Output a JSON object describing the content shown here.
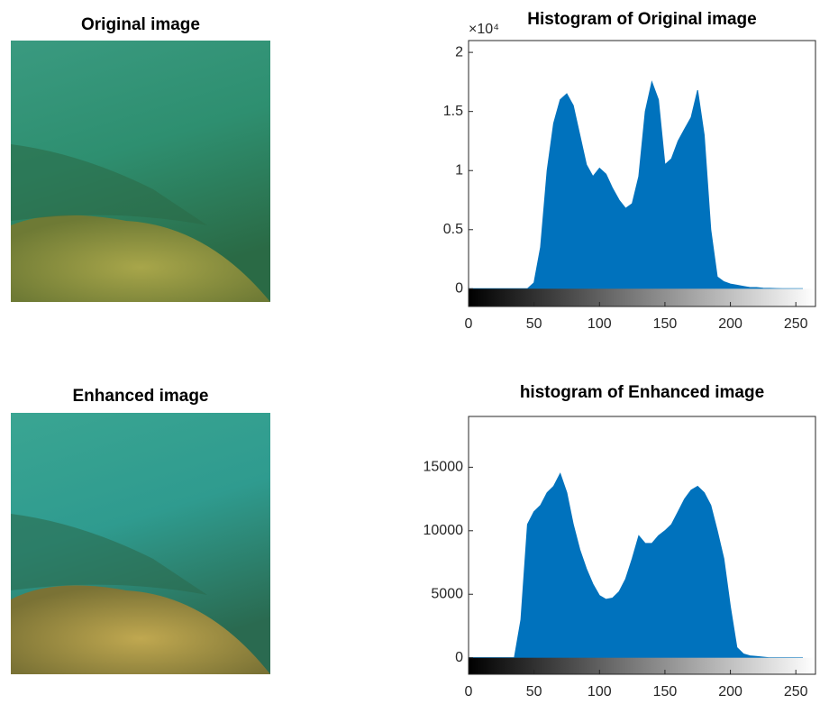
{
  "chart_data": [
    {
      "type": "image",
      "title": "Original image"
    },
    {
      "type": "area",
      "title": "Histogram of Original image",
      "y_multiplier": "×10⁴",
      "color": "#0072bd",
      "x": [
        0,
        5,
        10,
        15,
        20,
        25,
        30,
        35,
        40,
        45,
        50,
        55,
        60,
        65,
        70,
        75,
        80,
        85,
        90,
        95,
        100,
        105,
        110,
        115,
        120,
        125,
        130,
        135,
        140,
        145,
        150,
        155,
        160,
        165,
        170,
        175,
        180,
        185,
        190,
        195,
        200,
        205,
        210,
        215,
        220,
        225,
        230,
        235,
        240,
        245,
        250,
        255
      ],
      "values": [
        0,
        0,
        0,
        0,
        0,
        0,
        0,
        0,
        0,
        0,
        0.05,
        0.35,
        1.0,
        1.4,
        1.6,
        1.65,
        1.55,
        1.3,
        1.05,
        0.95,
        1.02,
        0.97,
        0.85,
        0.75,
        0.68,
        0.72,
        0.95,
        1.5,
        1.75,
        1.6,
        1.05,
        1.1,
        1.25,
        1.35,
        1.45,
        1.68,
        1.3,
        0.5,
        0.1,
        0.06,
        0.04,
        0.03,
        0.02,
        0.01,
        0.01,
        0.005,
        0.003,
        0.002,
        0,
        0,
        0,
        0
      ],
      "xlim": [
        0,
        265
      ],
      "ylim": [
        -0.15,
        2.1
      ],
      "xticks": [
        0,
        50,
        100,
        150,
        200,
        250
      ],
      "yticks": [
        0,
        0.5,
        1,
        1.5,
        2
      ]
    },
    {
      "type": "image",
      "title": "Enhanced image"
    },
    {
      "type": "area",
      "title": "histogram of Enhanced image",
      "color": "#0072bd",
      "x": [
        0,
        5,
        10,
        15,
        20,
        25,
        30,
        35,
        40,
        45,
        50,
        55,
        60,
        65,
        70,
        75,
        80,
        85,
        90,
        95,
        100,
        105,
        110,
        115,
        120,
        125,
        130,
        135,
        140,
        145,
        150,
        155,
        160,
        165,
        170,
        175,
        180,
        185,
        190,
        195,
        200,
        205,
        210,
        215,
        220,
        225,
        230,
        235,
        240,
        245,
        250,
        255
      ],
      "values": [
        0,
        0,
        0,
        0,
        0,
        0,
        0,
        0,
        3000,
        10500,
        11500,
        12000,
        13000,
        13500,
        14500,
        13000,
        10500,
        8500,
        7000,
        5800,
        4900,
        4600,
        4700,
        5200,
        6200,
        7800,
        9600,
        9000,
        9000,
        9600,
        10000,
        10500,
        11500,
        12500,
        13200,
        13500,
        13000,
        12000,
        10000,
        7800,
        4000,
        800,
        300,
        150,
        100,
        50,
        0,
        0,
        0,
        0,
        0,
        0
      ],
      "xlim": [
        0,
        265
      ],
      "ylim": [
        -1300,
        19000
      ],
      "xticks": [
        0,
        50,
        100,
        150,
        200,
        250
      ],
      "yticks": [
        0,
        5000,
        10000,
        15000
      ]
    }
  ]
}
